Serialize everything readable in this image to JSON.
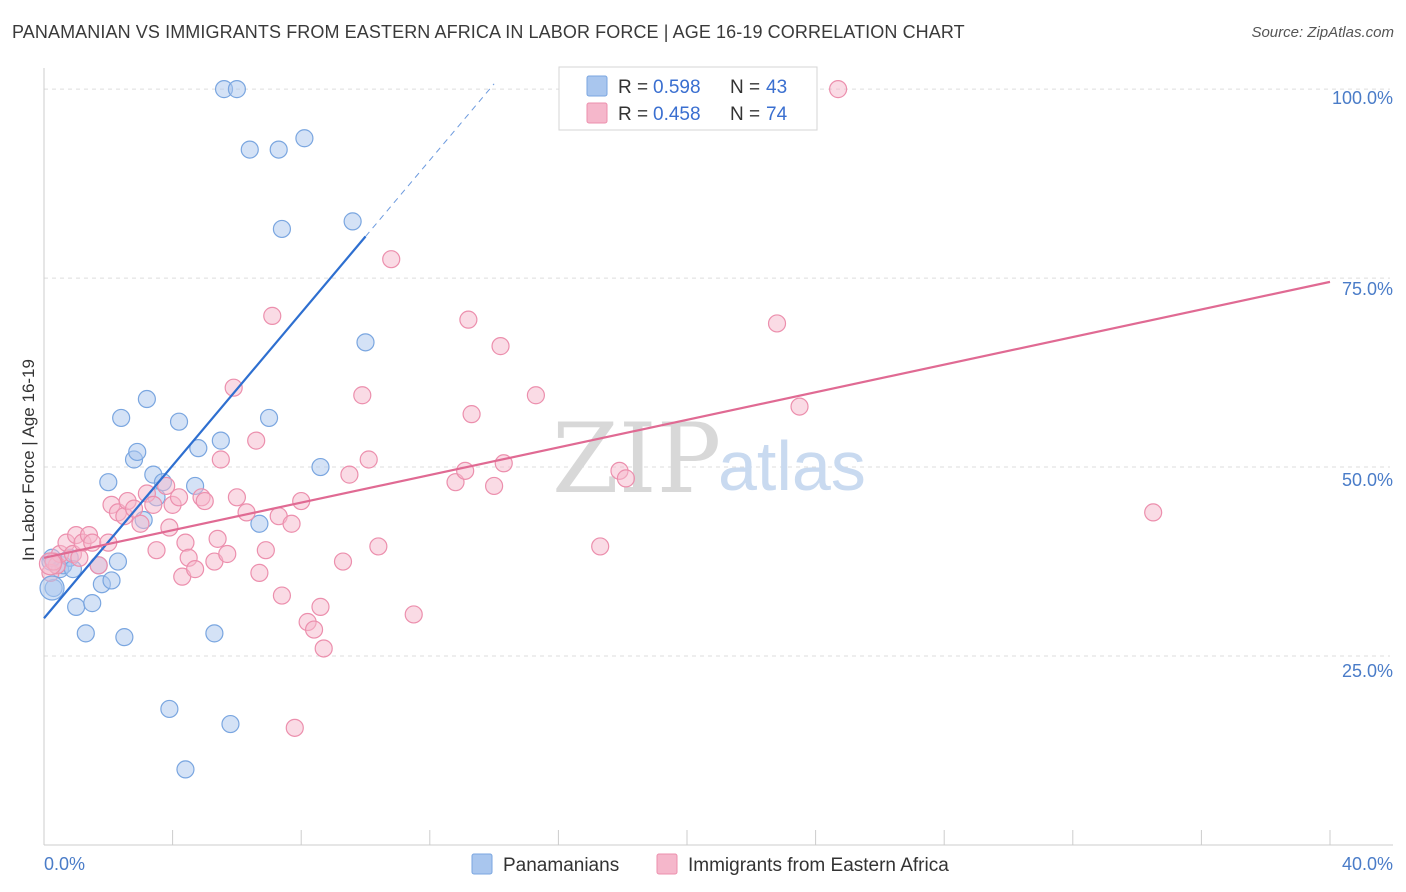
{
  "title": "PANAMANIAN VS IMMIGRANTS FROM EASTERN AFRICA IN LABOR FORCE | AGE 16-19 CORRELATION CHART",
  "source": "Source: ZipAtlas.com",
  "watermark": {
    "zip": "ZIP",
    "atlas": "atlas"
  },
  "legend": {
    "items": [
      {
        "r_label": "R =",
        "r_value": "0.598",
        "n_label": "N =",
        "n_value": "43"
      },
      {
        "r_label": "R =",
        "r_value": "0.458",
        "n_label": "N =",
        "n_value": "74"
      }
    ]
  },
  "colors": {
    "blue_fill": "#a9c6ee",
    "blue_stroke": "#7aa6e0",
    "blue_line": "#2e6fd0",
    "pink_fill": "#f5b7cb",
    "pink_stroke": "#ec8fad",
    "pink_line": "#e06a93",
    "grid": "#dddddd",
    "axis_label": "#4a7cc8"
  },
  "chart_data": {
    "type": "scatter",
    "title": "PANAMANIAN VS IMMIGRANTS FROM EASTERN AFRICA IN LABOR FORCE | AGE 16-19 CORRELATION CHART",
    "xlabel": "",
    "ylabel": "In Labor Force | Age 16-19",
    "xlim": [
      0,
      40
    ],
    "ylim": [
      0,
      102
    ],
    "x_tick_labels": [
      "0.0%",
      "40.0%"
    ],
    "y_ticks": [
      25,
      50,
      75,
      100
    ],
    "y_tick_labels": [
      "25.0%",
      "50.0%",
      "75.0%",
      "100.0%"
    ],
    "legend_position": "top-center",
    "grid": true,
    "series": [
      {
        "name": "Panamanians",
        "color": "#a9c6ee",
        "trend": {
          "x0": 0.0,
          "y0": 30.0,
          "x1": 10.0,
          "y1": 80.5,
          "dash_to_x": 14.0
        },
        "points": [
          [
            0.2,
            37.5
          ],
          [
            0.3,
            34.0
          ],
          [
            0.5,
            36.5
          ],
          [
            0.6,
            37.0
          ],
          [
            0.8,
            38.0
          ],
          [
            0.9,
            36.5
          ],
          [
            1.0,
            31.5
          ],
          [
            1.3,
            28.0
          ],
          [
            1.5,
            32.0
          ],
          [
            1.7,
            37.0
          ],
          [
            1.8,
            34.5
          ],
          [
            2.0,
            48.0
          ],
          [
            2.1,
            35.0
          ],
          [
            2.3,
            37.5
          ],
          [
            2.4,
            56.5
          ],
          [
            2.5,
            27.5
          ],
          [
            2.8,
            51.0
          ],
          [
            2.9,
            52.0
          ],
          [
            3.1,
            43.0
          ],
          [
            3.2,
            59.0
          ],
          [
            3.4,
            49.0
          ],
          [
            3.5,
            46.0
          ],
          [
            3.7,
            48.0
          ],
          [
            3.9,
            18.0
          ],
          [
            4.2,
            56.0
          ],
          [
            4.4,
            10.0
          ],
          [
            4.7,
            47.5
          ],
          [
            4.8,
            52.5
          ],
          [
            5.3,
            28.0
          ],
          [
            5.5,
            53.5
          ],
          [
            5.6,
            100.0
          ],
          [
            5.8,
            16.0
          ],
          [
            6.0,
            100.0
          ],
          [
            6.4,
            92.0
          ],
          [
            6.7,
            42.5
          ],
          [
            7.0,
            56.5
          ],
          [
            7.3,
            92.0
          ],
          [
            7.4,
            81.5
          ],
          [
            8.1,
            93.5
          ],
          [
            8.6,
            50.0
          ],
          [
            9.6,
            82.5
          ],
          [
            10.0,
            66.5
          ],
          [
            0.25,
            38.0
          ]
        ]
      },
      {
        "name": "Immigrants from Eastern Africa",
        "color": "#f5b7cb",
        "trend": {
          "x0": 0.0,
          "y0": 38.0,
          "x1": 40.0,
          "y1": 74.5
        },
        "points": [
          [
            0.2,
            36.0
          ],
          [
            0.4,
            37.0
          ],
          [
            0.5,
            38.5
          ],
          [
            0.7,
            40.0
          ],
          [
            0.9,
            38.5
          ],
          [
            1.0,
            41.0
          ],
          [
            1.2,
            40.0
          ],
          [
            1.4,
            41.0
          ],
          [
            1.5,
            40.0
          ],
          [
            1.7,
            37.0
          ],
          [
            2.0,
            40.0
          ],
          [
            2.1,
            45.0
          ],
          [
            2.3,
            44.0
          ],
          [
            2.5,
            43.5
          ],
          [
            2.6,
            45.5
          ],
          [
            2.8,
            44.5
          ],
          [
            3.0,
            42.5
          ],
          [
            3.2,
            46.5
          ],
          [
            3.4,
            45.0
          ],
          [
            3.5,
            39.0
          ],
          [
            3.8,
            47.5
          ],
          [
            3.9,
            42.0
          ],
          [
            4.0,
            45.0
          ],
          [
            4.2,
            46.0
          ],
          [
            4.3,
            35.5
          ],
          [
            4.4,
            40.0
          ],
          [
            4.5,
            38.0
          ],
          [
            4.7,
            36.5
          ],
          [
            4.9,
            46.0
          ],
          [
            5.0,
            45.5
          ],
          [
            5.3,
            37.5
          ],
          [
            5.4,
            40.5
          ],
          [
            5.5,
            51.0
          ],
          [
            5.7,
            38.5
          ],
          [
            5.9,
            60.5
          ],
          [
            6.0,
            46.0
          ],
          [
            6.3,
            44.0
          ],
          [
            6.6,
            53.5
          ],
          [
            6.7,
            36.0
          ],
          [
            6.9,
            39.0
          ],
          [
            7.1,
            70.0
          ],
          [
            7.3,
            43.5
          ],
          [
            7.4,
            33.0
          ],
          [
            7.7,
            42.5
          ],
          [
            8.0,
            45.5
          ],
          [
            8.2,
            29.5
          ],
          [
            8.4,
            28.5
          ],
          [
            8.6,
            31.5
          ],
          [
            8.7,
            26.0
          ],
          [
            7.8,
            15.5
          ],
          [
            9.3,
            37.5
          ],
          [
            9.5,
            49.0
          ],
          [
            9.9,
            59.5
          ],
          [
            10.1,
            51.0
          ],
          [
            10.4,
            39.5
          ],
          [
            10.8,
            77.5
          ],
          [
            11.5,
            30.5
          ],
          [
            12.8,
            48.0
          ],
          [
            13.1,
            49.5
          ],
          [
            13.2,
            69.5
          ],
          [
            13.3,
            57.0
          ],
          [
            14.0,
            47.5
          ],
          [
            14.2,
            66.0
          ],
          [
            14.3,
            50.5
          ],
          [
            15.3,
            59.5
          ],
          [
            17.3,
            39.5
          ],
          [
            17.9,
            49.5
          ],
          [
            18.1,
            48.5
          ],
          [
            22.8,
            69.0
          ],
          [
            23.5,
            58.0
          ],
          [
            24.7,
            100.0
          ],
          [
            34.5,
            44.0
          ],
          [
            0.3,
            37.5
          ],
          [
            1.1,
            38.0
          ]
        ]
      }
    ]
  }
}
